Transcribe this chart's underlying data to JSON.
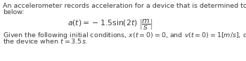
{
  "line1": "An accelerometer records acceleration for a device that is determined to be equivalent to the function",
  "line2": "below:",
  "formula_left": "$a(t) = -1.5\\sin(2t)$",
  "formula_units": "$\\left[\\dfrac{m}{s}\\right]$",
  "line3": "Given the following initial conditions, $x(t = 0) = 0$, and $v(t = 0) = 1[m/s]$, determine the position of",
  "line4": "the device when $t = 3.5s$.",
  "text_color": "#3a3a3a",
  "bg_color": "#ffffff",
  "fontsize_body": 6.8,
  "fontsize_formula": 7.8
}
